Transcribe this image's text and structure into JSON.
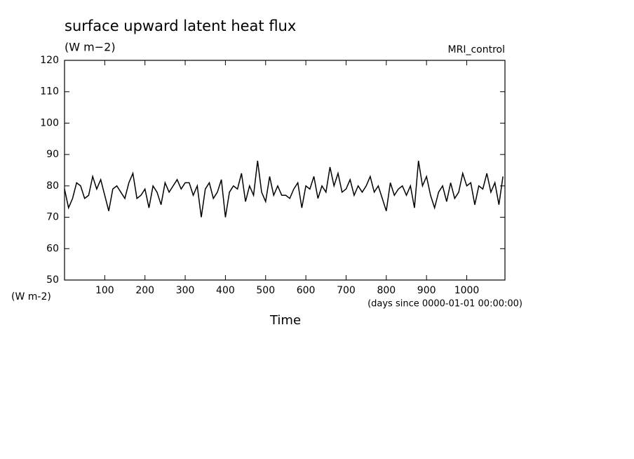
{
  "chart_data": {
    "type": "line",
    "title": "surface upward latent heat flux",
    "subtitle": "(W m−2)",
    "annotation": "MRI_control",
    "y_label": "(W m-2)",
    "x_units": "(days since 0000-01-01 00:00:00)",
    "x_label": "Time",
    "color": "#000000",
    "x": [
      0,
      10,
      20,
      30,
      40,
      50,
      60,
      70,
      80,
      90,
      100,
      110,
      120,
      130,
      140,
      150,
      160,
      170,
      180,
      190,
      200,
      210,
      220,
      230,
      240,
      250,
      260,
      270,
      280,
      290,
      300,
      310,
      320,
      330,
      340,
      350,
      360,
      370,
      380,
      390,
      400,
      410,
      420,
      430,
      440,
      450,
      460,
      470,
      480,
      490,
      500,
      510,
      520,
      530,
      540,
      550,
      560,
      570,
      580,
      590,
      600,
      610,
      620,
      630,
      640,
      650,
      660,
      670,
      680,
      690,
      700,
      710,
      720,
      730,
      740,
      750,
      760,
      770,
      780,
      790,
      800,
      810,
      820,
      830,
      840,
      850,
      860,
      870,
      880,
      890,
      900,
      910,
      920,
      930,
      940,
      950,
      960,
      970,
      980,
      990,
      1000,
      1010,
      1020,
      1030,
      1040,
      1050,
      1060,
      1070,
      1080,
      1090
    ],
    "values": [
      79,
      73,
      76,
      81,
      80,
      76,
      77,
      83,
      79,
      82,
      77,
      72,
      79,
      80,
      78,
      76,
      81,
      84,
      76,
      77,
      79,
      73,
      80,
      78,
      74,
      81,
      78,
      80,
      82,
      79,
      81,
      81,
      77,
      80,
      70,
      79,
      81,
      76,
      78,
      82,
      70,
      78,
      80,
      79,
      84,
      75,
      80,
      77,
      88,
      78,
      75,
      83,
      77,
      80,
      77,
      77,
      76,
      79,
      81,
      73,
      80,
      79,
      83,
      76,
      80,
      78,
      86,
      80,
      84,
      78,
      79,
      82,
      77,
      80,
      78,
      80,
      83,
      78,
      80,
      76,
      72,
      81,
      77,
      79,
      80,
      77,
      80,
      73,
      88,
      80,
      83,
      77,
      73,
      78,
      80,
      75,
      81,
      76,
      78,
      84,
      80,
      81,
      74,
      80,
      79,
      84,
      78,
      81,
      74,
      83
    ],
    "xlim": [
      0,
      1095
    ],
    "ylim": [
      50,
      120
    ],
    "xticks": [
      100,
      200,
      300,
      400,
      500,
      600,
      700,
      800,
      900,
      1000
    ],
    "yticks": [
      50,
      60,
      70,
      80,
      90,
      100,
      110,
      120
    ]
  }
}
